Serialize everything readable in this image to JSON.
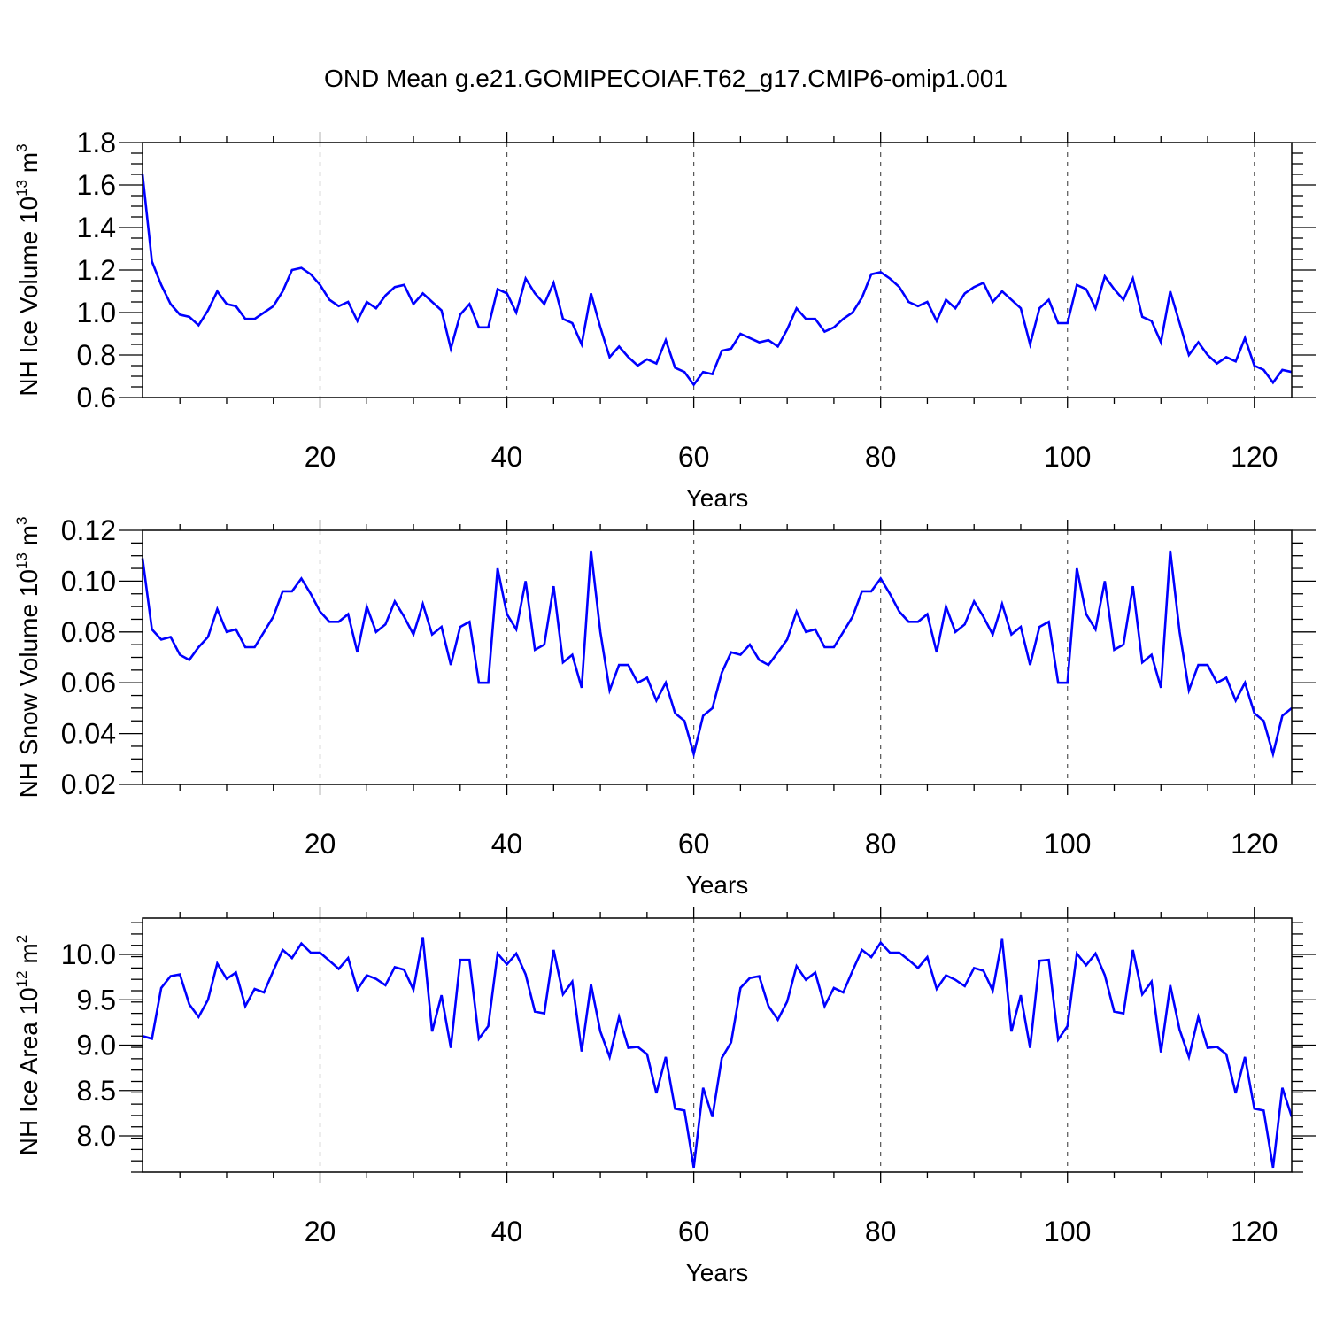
{
  "title": "OND Mean g.e21.GOMIPECOIAF.T62_g17.CMIP6-omip1.001",
  "colors": {
    "line": "#0000ff",
    "axis": "#000000",
    "grid": "#555555",
    "background": "#ffffff"
  },
  "chart_data": [
    {
      "type": "line",
      "xlabel": "Years",
      "ylabel": {
        "main": "NH Ice Volume 10",
        "sup": "13",
        "unit": " m",
        "unit_sup": "3"
      },
      "xlim": [
        1,
        124
      ],
      "ylim": [
        0.6,
        1.8
      ],
      "xticks": [
        20,
        40,
        60,
        80,
        100,
        120
      ],
      "xtick_labels": [
        "20",
        "40",
        "60",
        "80",
        "100",
        "120"
      ],
      "yticks": [
        0.6,
        0.8,
        1.0,
        1.2,
        1.4,
        1.6,
        1.8
      ],
      "ytick_labels": [
        "0.6",
        "0.8",
        "1.0",
        "1.2",
        "1.4",
        "1.6",
        "1.8"
      ],
      "grid": "x-dashed",
      "series": [
        {
          "name": "NH Ice Volume",
          "values": [
            1.65,
            1.24,
            1.13,
            1.04,
            0.99,
            0.98,
            0.94,
            1.01,
            1.1,
            1.04,
            1.03,
            0.97,
            0.97,
            1.0,
            1.03,
            1.1,
            1.2,
            1.21,
            1.18,
            1.13,
            1.06,
            1.03,
            1.05,
            0.96,
            1.05,
            1.02,
            1.08,
            1.12,
            1.13,
            1.04,
            1.09,
            1.05,
            1.01,
            0.83,
            0.99,
            1.04,
            0.93,
            0.93,
            1.11,
            1.09,
            1.0,
            1.16,
            1.09,
            1.04,
            1.14,
            0.97,
            0.95,
            0.85,
            1.09,
            0.93,
            0.79,
            0.84,
            0.79,
            0.75,
            0.78,
            0.76,
            0.87,
            0.74,
            0.72,
            0.66,
            0.72,
            0.71,
            0.82,
            0.83,
            0.9,
            0.88,
            0.86,
            0.87,
            0.84,
            0.92,
            1.02,
            0.97,
            0.97,
            0.91,
            0.93,
            0.97,
            1.0,
            1.07,
            1.18,
            1.19,
            1.16,
            1.12,
            1.05,
            1.03,
            1.05,
            0.96,
            1.06,
            1.02,
            1.09,
            1.12,
            1.14,
            1.05,
            1.1,
            1.06,
            1.02,
            0.85,
            1.02,
            1.06,
            0.95,
            0.95,
            1.13,
            1.11,
            1.02,
            1.17,
            1.11,
            1.06,
            1.16,
            0.98,
            0.96,
            0.86,
            1.1,
            0.95,
            0.8,
            0.86,
            0.8,
            0.76,
            0.79,
            0.77,
            0.88,
            0.75,
            0.73,
            0.67,
            0.73,
            0.72
          ]
        }
      ]
    },
    {
      "type": "line",
      "xlabel": "Years",
      "ylabel": {
        "main": "NH Snow Volume 10",
        "sup": "13",
        "unit": " m",
        "unit_sup": "3"
      },
      "xlim": [
        1,
        124
      ],
      "ylim": [
        0.02,
        0.12
      ],
      "xticks": [
        20,
        40,
        60,
        80,
        100,
        120
      ],
      "xtick_labels": [
        "20",
        "40",
        "60",
        "80",
        "100",
        "120"
      ],
      "yticks": [
        0.02,
        0.04,
        0.06,
        0.08,
        0.1,
        0.12
      ],
      "ytick_labels": [
        "0.02",
        "0.04",
        "0.06",
        "0.08",
        "0.10",
        "0.12"
      ],
      "grid": "x-dashed",
      "series": [
        {
          "name": "NH Snow Volume",
          "values": [
            0.109,
            0.081,
            0.077,
            0.078,
            0.071,
            0.069,
            0.074,
            0.078,
            0.089,
            0.08,
            0.081,
            0.074,
            0.074,
            0.08,
            0.086,
            0.096,
            0.096,
            0.101,
            0.095,
            0.088,
            0.084,
            0.084,
            0.087,
            0.072,
            0.09,
            0.08,
            0.083,
            0.092,
            0.086,
            0.079,
            0.091,
            0.079,
            0.082,
            0.067,
            0.082,
            0.084,
            0.06,
            0.06,
            0.105,
            0.087,
            0.081,
            0.1,
            0.073,
            0.075,
            0.098,
            0.068,
            0.071,
            0.058,
            0.112,
            0.08,
            0.057,
            0.067,
            0.067,
            0.06,
            0.062,
            0.053,
            0.06,
            0.048,
            0.045,
            0.032,
            0.047,
            0.05,
            0.064,
            0.072,
            0.071,
            0.075,
            0.069,
            0.067,
            0.072,
            0.077,
            0.088,
            0.08,
            0.081,
            0.074,
            0.074,
            0.08,
            0.086,
            0.096,
            0.096,
            0.101,
            0.095,
            0.088,
            0.084,
            0.084,
            0.087,
            0.072,
            0.09,
            0.08,
            0.083,
            0.092,
            0.086,
            0.079,
            0.091,
            0.079,
            0.082,
            0.067,
            0.082,
            0.084,
            0.06,
            0.06,
            0.105,
            0.087,
            0.081,
            0.1,
            0.073,
            0.075,
            0.098,
            0.068,
            0.071,
            0.058,
            0.112,
            0.08,
            0.057,
            0.067,
            0.067,
            0.06,
            0.062,
            0.053,
            0.06,
            0.048,
            0.045,
            0.032,
            0.047,
            0.05
          ]
        }
      ]
    },
    {
      "type": "line",
      "xlabel": "Years",
      "ylabel": {
        "main": "NH Ice Area 10",
        "sup": "12",
        "unit": " m",
        "unit_sup": "2"
      },
      "xlim": [
        1,
        124
      ],
      "ylim": [
        7.6,
        10.4
      ],
      "xticks": [
        20,
        40,
        60,
        80,
        100,
        120
      ],
      "xtick_labels": [
        "20",
        "40",
        "60",
        "80",
        "100",
        "120"
      ],
      "yticks": [
        8.0,
        8.5,
        9.0,
        9.5,
        10.0
      ],
      "ytick_labels": [
        "8.0",
        "8.5",
        "9.0",
        "9.5",
        "10.0"
      ],
      "grid": "x-dashed",
      "series": [
        {
          "name": "NH Ice Area",
          "values": [
            9.1,
            9.07,
            9.63,
            9.76,
            9.78,
            9.45,
            9.31,
            9.5,
            9.9,
            9.73,
            9.8,
            9.43,
            9.62,
            9.58,
            9.82,
            10.05,
            9.96,
            10.12,
            10.02,
            10.02,
            9.93,
            9.84,
            9.96,
            9.61,
            9.77,
            9.73,
            9.66,
            9.86,
            9.83,
            9.61,
            10.19,
            9.15,
            9.55,
            8.97,
            9.94,
            9.94,
            9.07,
            9.21,
            10.01,
            9.89,
            10.01,
            9.78,
            9.37,
            9.35,
            10.05,
            9.56,
            9.7,
            8.93,
            9.67,
            9.15,
            8.87,
            9.31,
            8.97,
            8.98,
            8.9,
            8.47,
            8.87,
            8.3,
            8.28,
            7.65,
            8.53,
            8.21,
            8.86,
            9.03,
            9.63,
            9.74,
            9.76,
            9.43,
            9.28,
            9.48,
            9.87,
            9.72,
            9.8,
            9.43,
            9.63,
            9.58,
            9.82,
            10.05,
            9.97,
            10.13,
            10.02,
            10.02,
            9.94,
            9.85,
            9.97,
            9.62,
            9.77,
            9.72,
            9.65,
            9.85,
            9.82,
            9.6,
            10.17,
            9.15,
            9.55,
            8.97,
            9.93,
            9.94,
            9.06,
            9.21,
            10.01,
            9.88,
            10.01,
            9.77,
            9.37,
            9.35,
            10.05,
            9.56,
            9.7,
            8.92,
            9.66,
            9.17,
            8.87,
            9.31,
            8.97,
            8.98,
            8.9,
            8.47,
            8.87,
            8.3,
            8.28,
            7.65,
            8.53,
            8.21
          ]
        }
      ]
    }
  ]
}
